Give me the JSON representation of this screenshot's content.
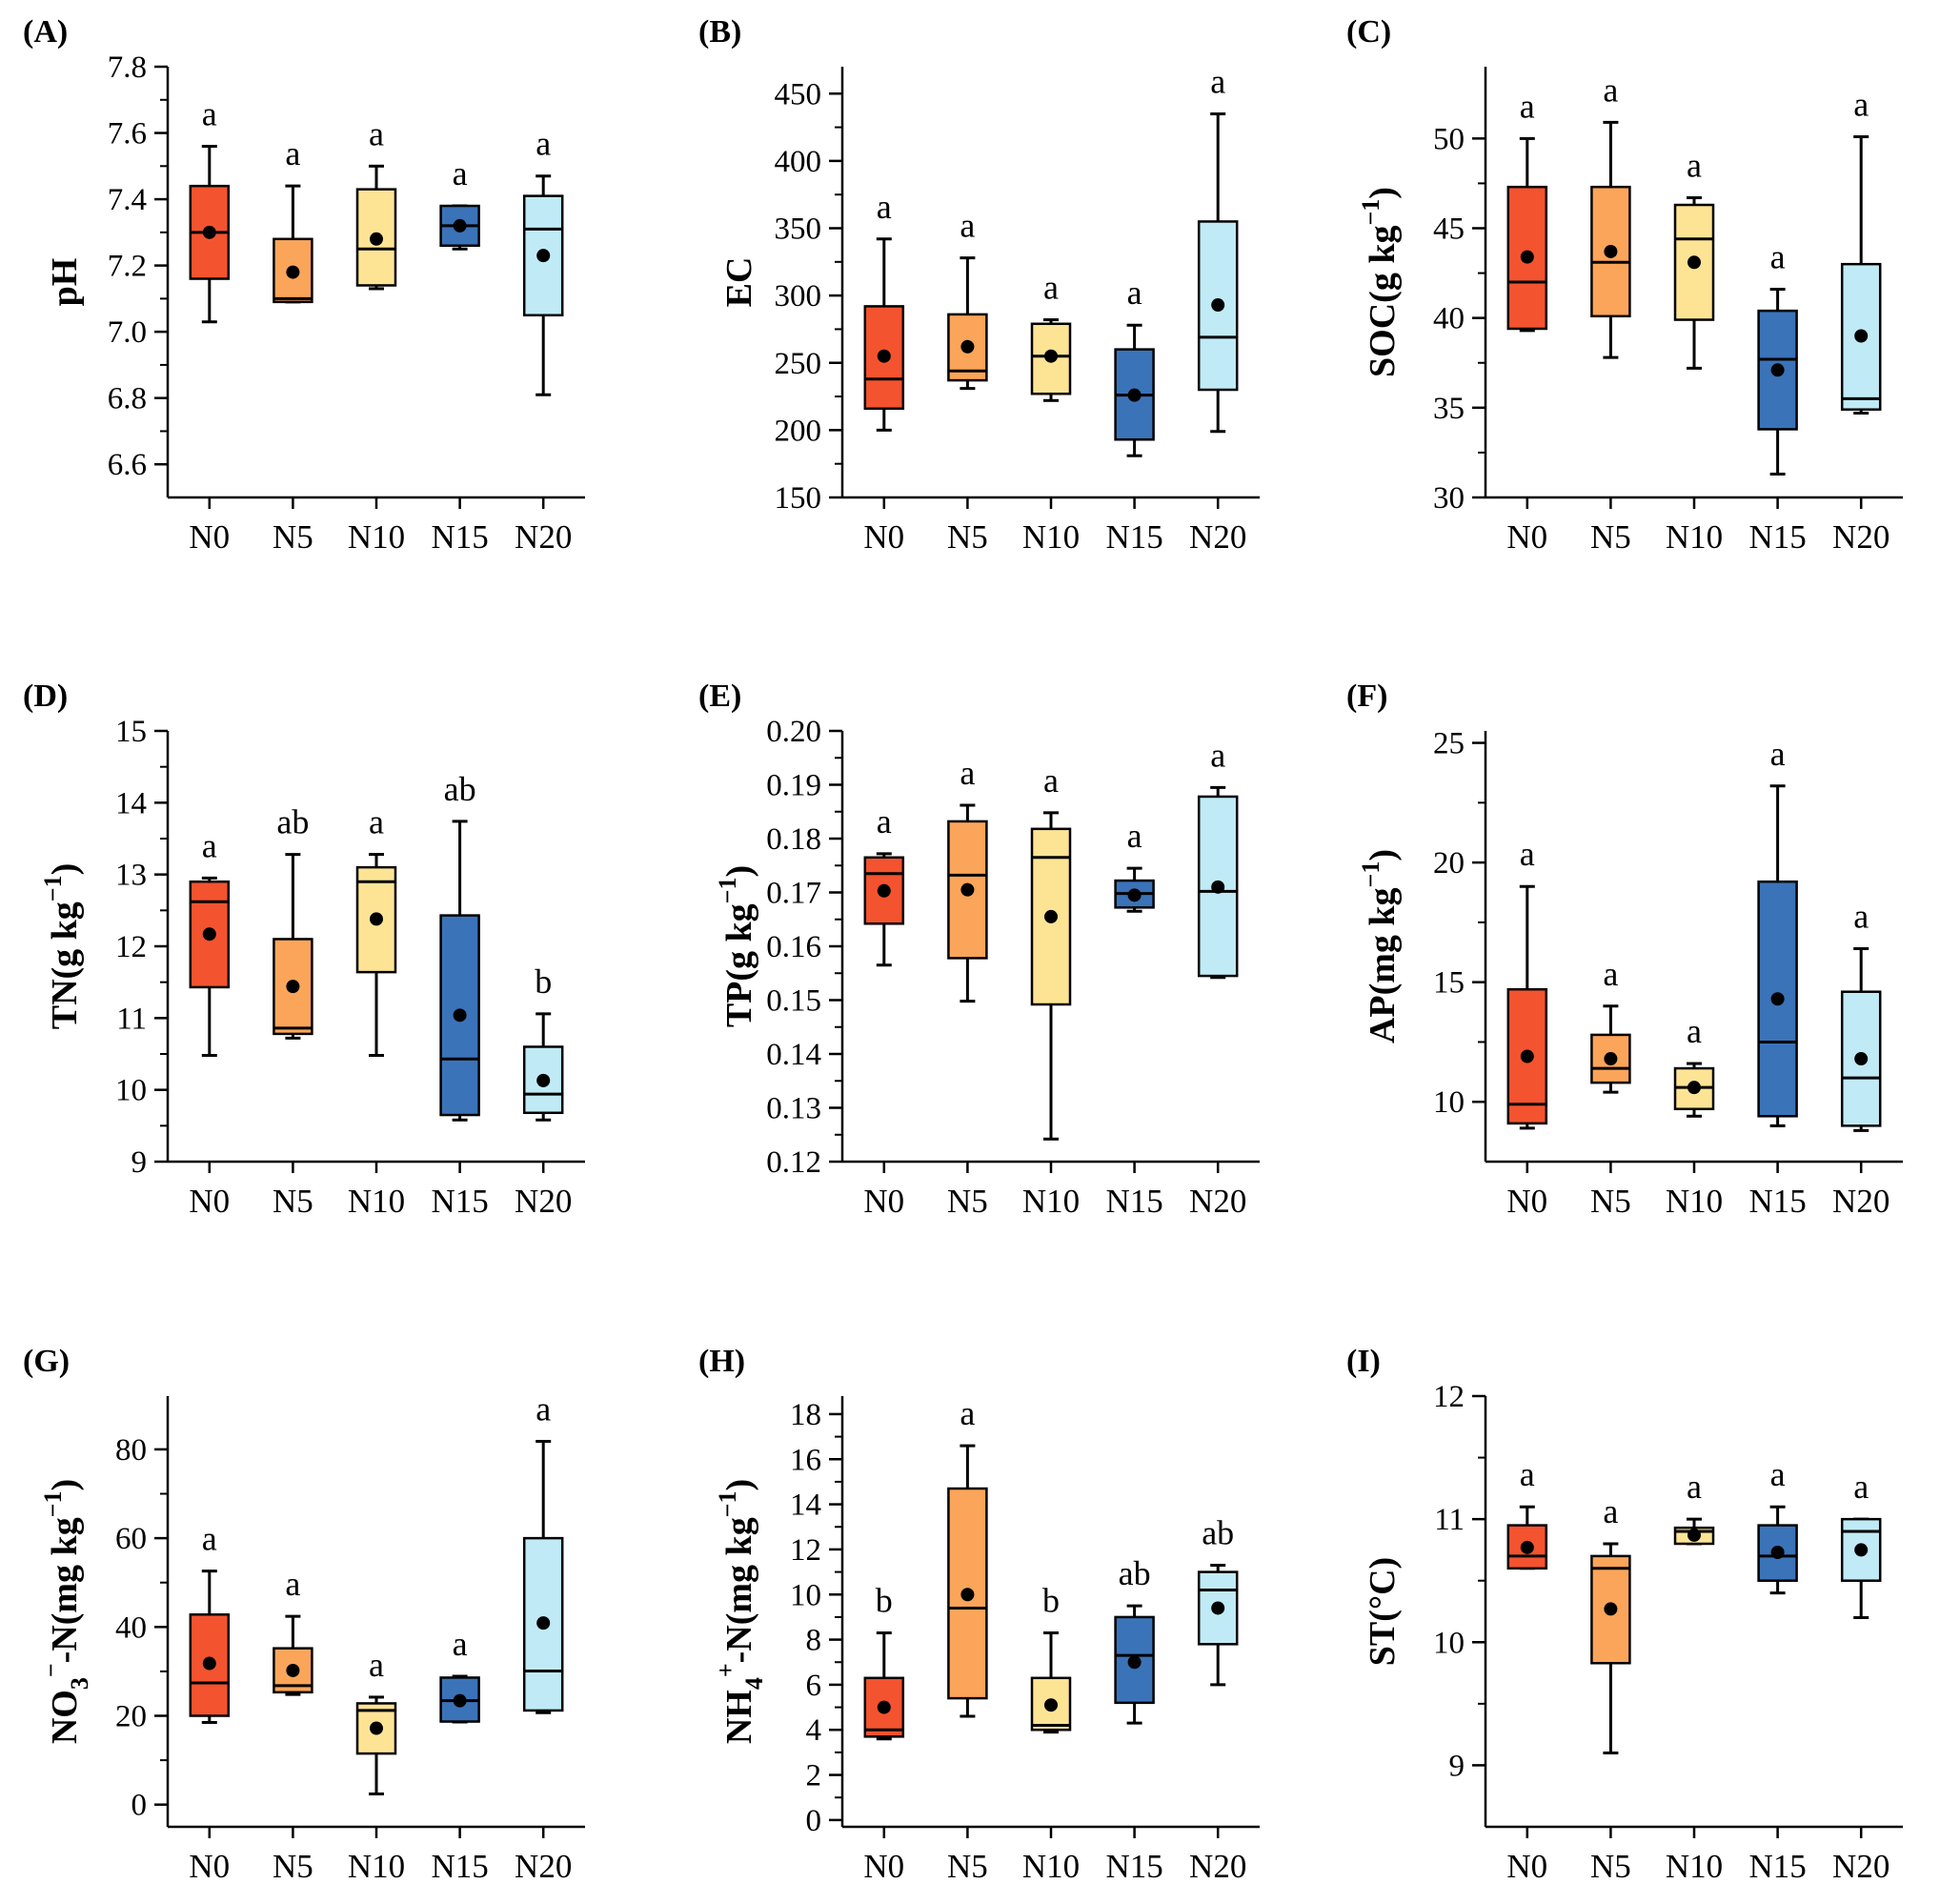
{
  "chart_data": [
    {
      "type": "box",
      "panel": "(A)",
      "ylabel": "pH",
      "categories": [
        "N0",
        "N5",
        "N10",
        "N15",
        "N20"
      ],
      "ylim": [
        6.5,
        7.8
      ],
      "yticks": [
        6.6,
        6.8,
        7.0,
        7.2,
        7.4,
        7.6,
        7.8
      ],
      "ytick_decimals": 1,
      "boxes": [
        {
          "min": 7.03,
          "q1": 7.16,
          "median": 7.3,
          "q3": 7.44,
          "max": 7.56,
          "mean": 7.3
        },
        {
          "min": 7.09,
          "q1": 7.09,
          "median": 7.1,
          "q3": 7.28,
          "max": 7.44,
          "mean": 7.18
        },
        {
          "min": 7.13,
          "q1": 7.14,
          "median": 7.25,
          "q3": 7.43,
          "max": 7.5,
          "mean": 7.28
        },
        {
          "min": 7.25,
          "q1": 7.26,
          "median": 7.32,
          "q3": 7.38,
          "max": 7.38,
          "mean": 7.32
        },
        {
          "min": 6.81,
          "q1": 7.05,
          "median": 7.31,
          "q3": 7.41,
          "max": 7.47,
          "mean": 7.23
        }
      ],
      "letters": [
        "a",
        "a",
        "a",
        "a",
        "a"
      ]
    },
    {
      "type": "box",
      "panel": "(B)",
      "ylabel": "EC",
      "categories": [
        "N0",
        "N5",
        "N10",
        "N15",
        "N20"
      ],
      "ylim": [
        150,
        470
      ],
      "yticks": [
        150,
        200,
        250,
        300,
        350,
        400,
        450
      ],
      "ytick_decimals": 0,
      "boxes": [
        {
          "min": 200,
          "q1": 216,
          "median": 238,
          "q3": 292,
          "max": 342,
          "mean": 255
        },
        {
          "min": 231,
          "q1": 237,
          "median": 244,
          "q3": 286,
          "max": 328,
          "mean": 262
        },
        {
          "min": 222,
          "q1": 227,
          "median": 255,
          "q3": 279,
          "max": 282,
          "mean": 255
        },
        {
          "min": 181,
          "q1": 193,
          "median": 226,
          "q3": 260,
          "max": 278,
          "mean": 226
        },
        {
          "min": 199,
          "q1": 230,
          "median": 269,
          "q3": 355,
          "max": 435,
          "mean": 293
        }
      ],
      "letters": [
        "a",
        "a",
        "a",
        "a",
        "a"
      ]
    },
    {
      "type": "box",
      "panel": "(C)",
      "ylabel": "SOC(g kg",
      "ylabel_sup": "−1",
      "ylabel_tail": ")",
      "categories": [
        "N0",
        "N5",
        "N10",
        "N15",
        "N20"
      ],
      "ylim": [
        30,
        54
      ],
      "yticks": [
        30,
        35,
        40,
        45,
        50
      ],
      "ytick_decimals": 0,
      "boxes": [
        {
          "min": 39.3,
          "q1": 39.4,
          "median": 42.0,
          "q3": 47.3,
          "max": 50.0,
          "mean": 43.4
        },
        {
          "min": 37.8,
          "q1": 40.1,
          "median": 43.1,
          "q3": 47.3,
          "max": 50.9,
          "mean": 43.7
        },
        {
          "min": 37.2,
          "q1": 39.9,
          "median": 44.4,
          "q3": 46.3,
          "max": 46.7,
          "mean": 43.1
        },
        {
          "min": 31.3,
          "q1": 33.8,
          "median": 37.7,
          "q3": 40.4,
          "max": 41.6,
          "mean": 37.1
        },
        {
          "min": 34.7,
          "q1": 34.9,
          "median": 35.5,
          "q3": 43.0,
          "max": 50.1,
          "mean": 39.0
        }
      ],
      "letters": [
        "a",
        "a",
        "a",
        "a",
        "a"
      ]
    },
    {
      "type": "box",
      "panel": "(D)",
      "ylabel": "TN(g kg",
      "ylabel_sup": "−1",
      "ylabel_tail": ")",
      "categories": [
        "N0",
        "N5",
        "N10",
        "N15",
        "N20"
      ],
      "ylim": [
        9,
        15
      ],
      "yticks": [
        9,
        10,
        11,
        12,
        13,
        14,
        15
      ],
      "ytick_decimals": 0,
      "boxes": [
        {
          "min": 10.48,
          "q1": 11.43,
          "median": 12.62,
          "q3": 12.9,
          "max": 12.95,
          "mean": 12.17
        },
        {
          "min": 10.72,
          "q1": 10.78,
          "median": 10.86,
          "q3": 12.1,
          "max": 13.28,
          "mean": 11.44
        },
        {
          "min": 10.48,
          "q1": 11.64,
          "median": 12.9,
          "q3": 13.1,
          "max": 13.28,
          "mean": 12.38
        },
        {
          "min": 9.58,
          "q1": 9.65,
          "median": 10.43,
          "q3": 12.43,
          "max": 13.74,
          "mean": 11.04
        },
        {
          "min": 9.58,
          "q1": 9.68,
          "median": 9.94,
          "q3": 10.6,
          "max": 11.06,
          "mean": 10.13
        }
      ],
      "letters": [
        "a",
        "ab",
        "a",
        "ab",
        "b"
      ]
    },
    {
      "type": "box",
      "panel": "(E)",
      "ylabel": "TP(g kg",
      "ylabel_sup": "−1",
      "ylabel_tail": ")",
      "categories": [
        "N0",
        "N5",
        "N10",
        "N15",
        "N20"
      ],
      "ylim": [
        0.12,
        0.2
      ],
      "yticks": [
        0.12,
        0.13,
        0.14,
        0.15,
        0.16,
        0.17,
        0.18,
        0.19,
        0.2
      ],
      "ytick_decimals": 2,
      "boxes": [
        {
          "min": 0.1565,
          "q1": 0.1642,
          "median": 0.1735,
          "q3": 0.1765,
          "max": 0.1772,
          "mean": 0.1703
        },
        {
          "min": 0.1498,
          "q1": 0.1578,
          "median": 0.1732,
          "q3": 0.1832,
          "max": 0.1862,
          "mean": 0.1705
        },
        {
          "min": 0.1242,
          "q1": 0.1492,
          "median": 0.1765,
          "q3": 0.1818,
          "max": 0.1848,
          "mean": 0.1655
        },
        {
          "min": 0.1665,
          "q1": 0.1672,
          "median": 0.1698,
          "q3": 0.1722,
          "max": 0.1745,
          "mean": 0.1695
        },
        {
          "min": 0.1542,
          "q1": 0.1545,
          "median": 0.1702,
          "q3": 0.1878,
          "max": 0.1895,
          "mean": 0.171
        }
      ],
      "letters": [
        "a",
        "a",
        "a",
        "a",
        "a"
      ]
    },
    {
      "type": "box",
      "panel": "(F)",
      "ylabel": "AP(mg kg",
      "ylabel_sup": "−1",
      "ylabel_tail": ")",
      "categories": [
        "N0",
        "N5",
        "N10",
        "N15",
        "N20"
      ],
      "ylim": [
        7.5,
        25.5
      ],
      "yticks": [
        10,
        15,
        20,
        25
      ],
      "ytick_decimals": 0,
      "boxes": [
        {
          "min": 8.9,
          "q1": 9.1,
          "median": 9.9,
          "q3": 14.7,
          "max": 19.0,
          "mean": 11.9
        },
        {
          "min": 10.4,
          "q1": 10.8,
          "median": 11.4,
          "q3": 12.8,
          "max": 14.0,
          "mean": 11.8
        },
        {
          "min": 9.4,
          "q1": 9.7,
          "median": 10.6,
          "q3": 11.4,
          "max": 11.6,
          "mean": 10.6
        },
        {
          "min": 9.0,
          "q1": 9.4,
          "median": 12.5,
          "q3": 19.2,
          "max": 23.2,
          "mean": 14.3
        },
        {
          "min": 8.8,
          "q1": 9.0,
          "median": 11.0,
          "q3": 14.6,
          "max": 16.4,
          "mean": 11.8
        }
      ],
      "letters": [
        "a",
        "a",
        "a",
        "a",
        "a"
      ]
    },
    {
      "type": "box",
      "panel": "(G)",
      "ylabel": "NO",
      "ylabel_sub": "3",
      "ylabel_sup": "−",
      "ylabel_tail": "-N(mg kg",
      "ylabel_sup2": "−1",
      "ylabel_tail2": ")",
      "categories": [
        "N0",
        "N5",
        "N10",
        "N15",
        "N20"
      ],
      "ylim": [
        -5,
        92
      ],
      "yticks": [
        0,
        20,
        40,
        60,
        80
      ],
      "ytick_decimals": 0,
      "boxes": [
        {
          "min": 18.5,
          "q1": 20,
          "median": 27.4,
          "q3": 42.8,
          "max": 52.6,
          "mean": 31.8
        },
        {
          "min": 24.8,
          "q1": 25.3,
          "median": 26.8,
          "q3": 35.2,
          "max": 42.4,
          "mean": 30.2
        },
        {
          "min": 2.4,
          "q1": 11.5,
          "median": 21.2,
          "q3": 22.8,
          "max": 24.2,
          "mean": 17.2
        },
        {
          "min": 18.6,
          "q1": 18.7,
          "median": 23.4,
          "q3": 28.6,
          "max": 28.9,
          "mean": 23.4
        },
        {
          "min": 20.7,
          "q1": 21.2,
          "median": 30.1,
          "q3": 60.0,
          "max": 81.8,
          "mean": 40.9
        }
      ],
      "letters": [
        "a",
        "a",
        "a",
        "a",
        "a"
      ]
    },
    {
      "type": "box",
      "panel": "(H)",
      "ylabel": "NH",
      "ylabel_sub": "4",
      "ylabel_sup": "+",
      "ylabel_tail": "-N(mg kg",
      "ylabel_sup2": "−1",
      "ylabel_tail2": ")",
      "categories": [
        "N0",
        "N5",
        "N10",
        "N15",
        "N20"
      ],
      "ylim": [
        -0.3,
        18.8
      ],
      "yticks": [
        0,
        2,
        4,
        6,
        8,
        10,
        12,
        14,
        16,
        18
      ],
      "ytick_decimals": 0,
      "boxes": [
        {
          "min": 3.6,
          "q1": 3.7,
          "median": 4.0,
          "q3": 6.3,
          "max": 8.3,
          "mean": 5.0
        },
        {
          "min": 4.6,
          "q1": 5.4,
          "median": 9.4,
          "q3": 14.7,
          "max": 16.6,
          "mean": 10.0
        },
        {
          "min": 3.9,
          "q1": 4.0,
          "median": 4.2,
          "q3": 6.3,
          "max": 8.3,
          "mean": 5.1
        },
        {
          "min": 4.3,
          "q1": 5.2,
          "median": 7.3,
          "q3": 9.0,
          "max": 9.5,
          "mean": 7.0
        },
        {
          "min": 6.0,
          "q1": 7.8,
          "median": 10.2,
          "q3": 11.0,
          "max": 11.3,
          "mean": 9.4
        }
      ],
      "letters": [
        "b",
        "a",
        "b",
        "ab",
        "ab"
      ]
    },
    {
      "type": "box",
      "panel": "(I)",
      "ylabel": "ST(°C)",
      "categories": [
        "N0",
        "N5",
        "N10",
        "N15",
        "N20"
      ],
      "ylim": [
        8.5,
        12
      ],
      "yticks": [
        9,
        10,
        11,
        12
      ],
      "ytick_decimals": 0,
      "boxes": [
        {
          "min": 10.6,
          "q1": 10.6,
          "median": 10.7,
          "q3": 10.95,
          "max": 11.1,
          "mean": 10.77
        },
        {
          "min": 9.1,
          "q1": 9.83,
          "median": 10.6,
          "q3": 10.7,
          "max": 10.8,
          "mean": 10.27
        },
        {
          "min": 10.8,
          "q1": 10.8,
          "median": 10.9,
          "q3": 10.93,
          "max": 11.0,
          "mean": 10.87
        },
        {
          "min": 10.4,
          "q1": 10.5,
          "median": 10.7,
          "q3": 10.95,
          "max": 11.1,
          "mean": 10.73
        },
        {
          "min": 10.2,
          "q1": 10.5,
          "median": 10.9,
          "q3": 11.0,
          "max": 11.0,
          "mean": 10.75
        }
      ],
      "letters": [
        "a",
        "a",
        "a",
        "a",
        "a"
      ]
    }
  ],
  "colors": {
    "N0": "#f4532f",
    "N5": "#fba55a",
    "N10": "#fde495",
    "N15": "#3b73b9",
    "N20": "#c0ebf6",
    "line": "#000000"
  }
}
